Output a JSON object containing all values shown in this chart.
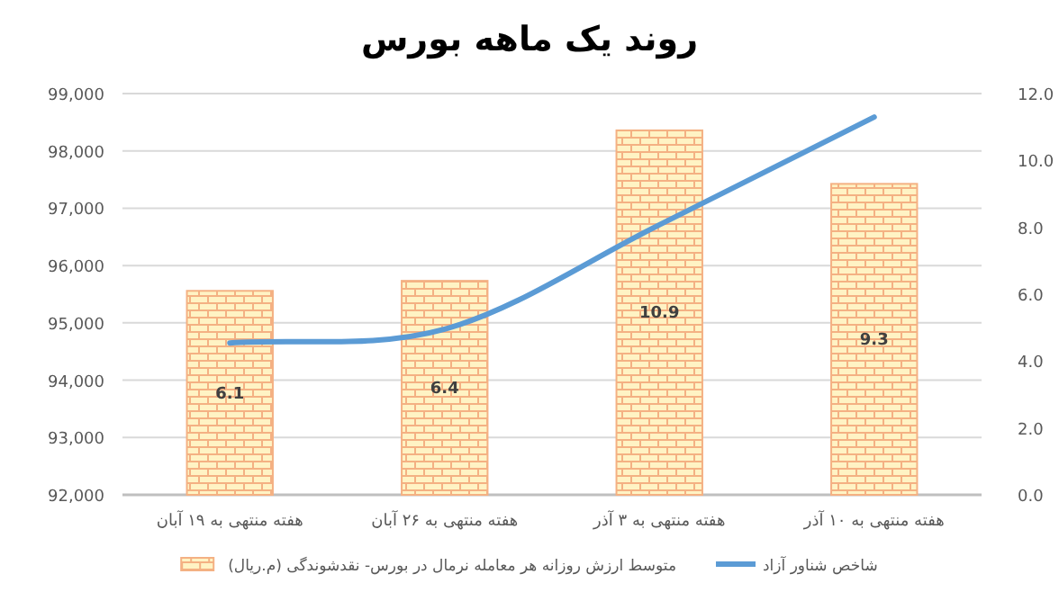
{
  "chart_data": {
    "type": "bar",
    "title": "روند یک ماهه بورس",
    "categories": [
      "هفته منتهی به ۱۹ آبان",
      "هفته منتهی به ۲۶ آبان",
      "هفته منتهی به ۳ آذر",
      "هفته منتهی به ۱۰ آذر"
    ],
    "series": [
      {
        "name": "متوسط ارزش روزانه هر معامله نرمال در بورس- نقدشوندگی (م.ریال)",
        "axis": "y2",
        "color": "#f4b183",
        "values": [
          6.1,
          6.4,
          10.9,
          9.3
        ],
        "value_labels": [
          "6.1",
          "6.4",
          "10.9",
          "9.3"
        ]
      },
      {
        "name": "شاخص شناور آزاد",
        "type": "line",
        "color": "#5b9bd5",
        "values": [
          94650,
          94890,
          96710,
          98590
        ]
      }
    ],
    "ylim": [
      92000,
      99000
    ],
    "yticks": [
      {
        "value": 92000,
        "label": "92,000"
      },
      {
        "value": 93000,
        "label": "93,000"
      },
      {
        "value": 94000,
        "label": "94,000"
      },
      {
        "value": 95000,
        "label": "95,000"
      },
      {
        "value": 96000,
        "label": "96,000"
      },
      {
        "value": 97000,
        "label": "97,000"
      },
      {
        "value": 98000,
        "label": "98,000"
      },
      {
        "value": 99000,
        "label": "99,000"
      }
    ],
    "y2lim": [
      0,
      12
    ],
    "y2ticks": [
      {
        "value": 0,
        "label": "0.0"
      },
      {
        "value": 2,
        "label": "2.0"
      },
      {
        "value": 4,
        "label": "4.0"
      },
      {
        "value": 6,
        "label": "6.0"
      },
      {
        "value": 8,
        "label": "8.0"
      },
      {
        "value": 10,
        "label": "10.0"
      },
      {
        "value": 12,
        "label": "12.0"
      }
    ],
    "grid": "y",
    "legend": "bottom"
  }
}
